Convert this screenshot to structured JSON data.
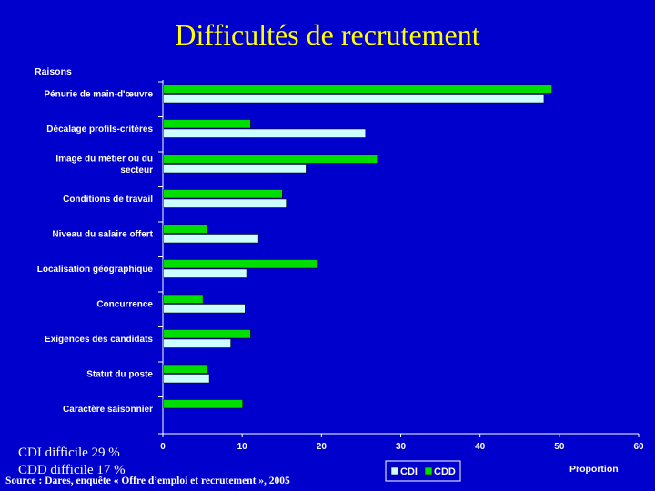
{
  "page": {
    "title": "Difficultés de recrutement",
    "note_cdi": "CDI difficile 29 %",
    "note_cdd": "CDD difficile 17 %",
    "source": "Source : Dares, enquête « Offre d’emploi et recrutement », 2005"
  },
  "chart_data": {
    "type": "bar",
    "orientation": "horizontal",
    "ylabel": "Raisons",
    "xlabel": "Proportion",
    "xlim": [
      0,
      60
    ],
    "xticks": [
      0,
      10,
      20,
      30,
      40,
      50,
      60
    ],
    "categories": [
      [
        "Pénurie de main-d'œuvre"
      ],
      [
        "Décalage profils-critères"
      ],
      [
        "Image du métier ou du",
        "secteur"
      ],
      [
        "Conditions de travail"
      ],
      [
        "Niveau du salaire offert"
      ],
      [
        "Localisation géographique"
      ],
      [
        "Concurrence"
      ],
      [
        "Exigences des candidats"
      ],
      [
        "Statut du poste"
      ],
      [
        "Caractère saisonnier"
      ]
    ],
    "series": [
      {
        "name": "CDD",
        "color": "#00dd00",
        "values": [
          49,
          11,
          27,
          15,
          5.5,
          19.5,
          5,
          11,
          5.5,
          10
        ]
      },
      {
        "name": "CDI",
        "color": "#ccffff",
        "values": [
          48,
          25.5,
          18,
          15.5,
          12,
          10.5,
          10.3,
          8.5,
          5.8,
          null
        ]
      }
    ],
    "grid": false,
    "legend": {
      "position": "bottom",
      "order": [
        "CDI",
        "CDD"
      ]
    }
  }
}
